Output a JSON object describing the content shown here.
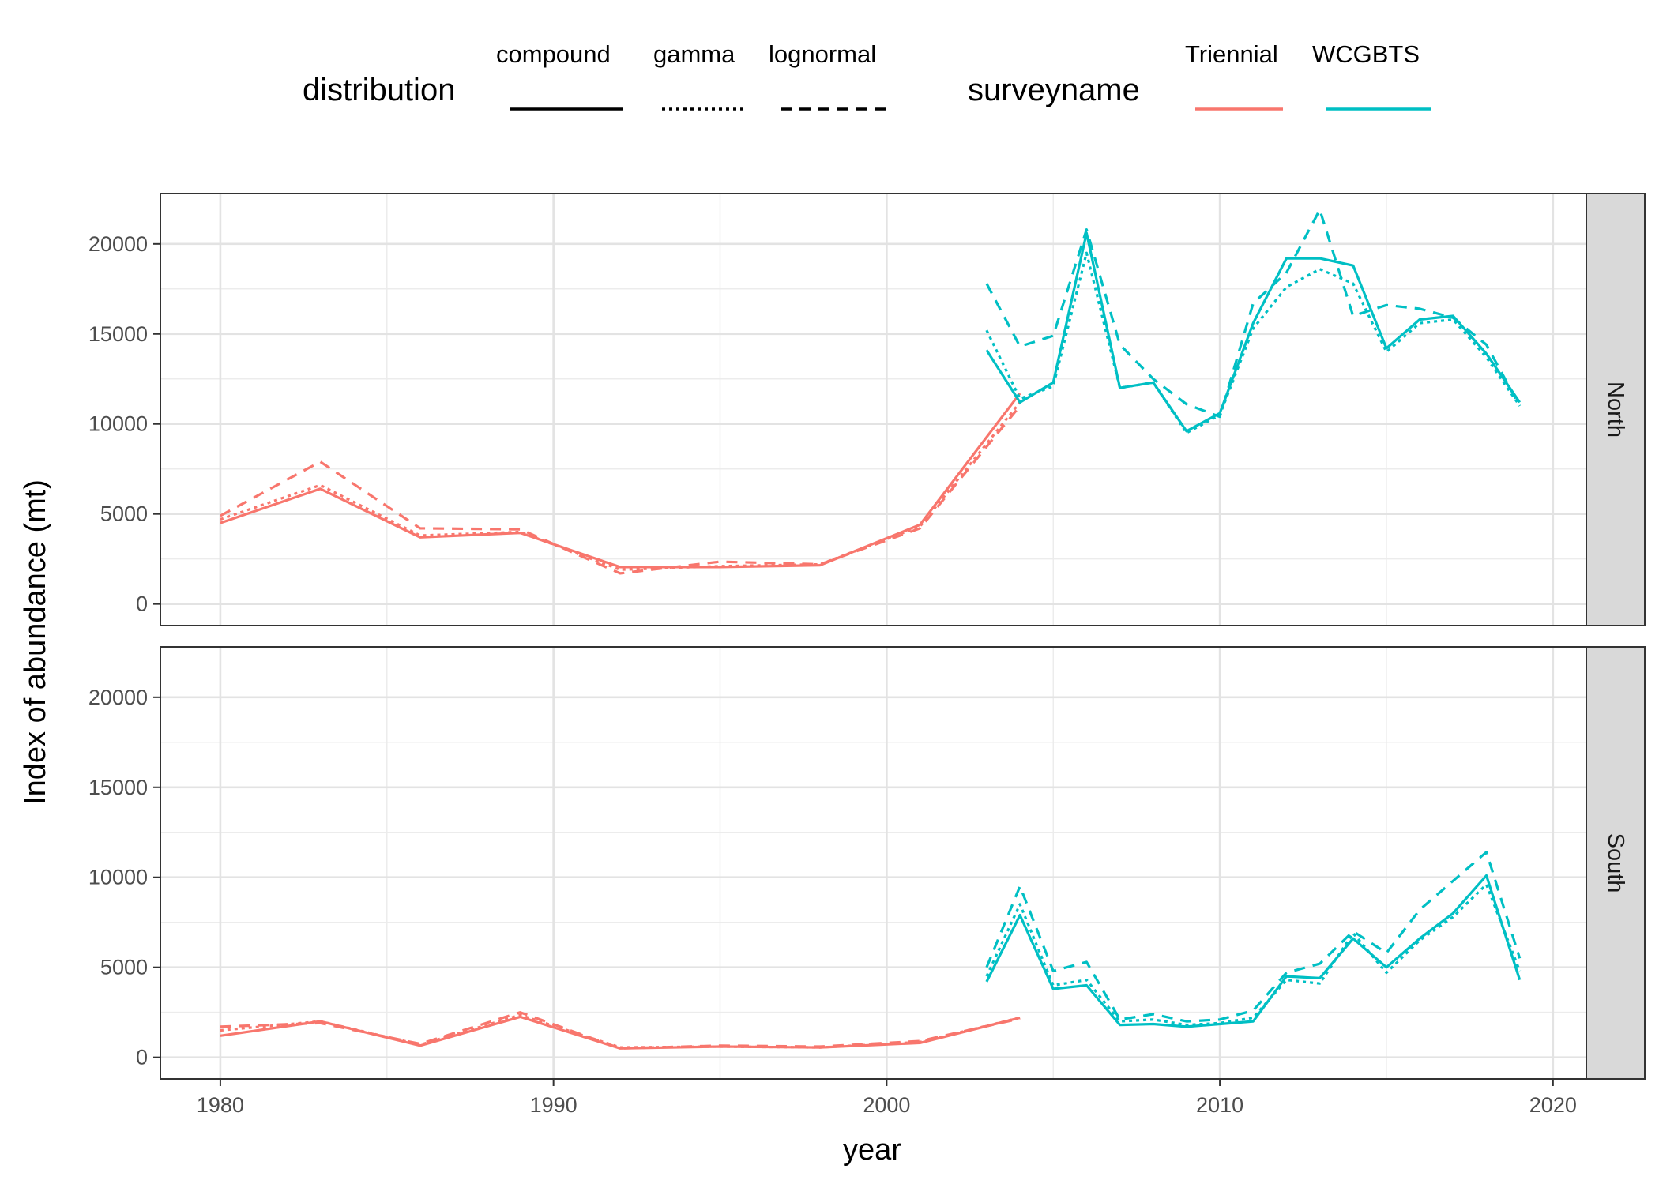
{
  "chart_data": {
    "type": "line",
    "xlabel": "year",
    "ylabel": "Index of abundance (mt)",
    "xlim": [
      1978.2,
      2021.0
    ],
    "x_ticks": [
      1980,
      1990,
      2000,
      2010,
      2020
    ],
    "ylim": [
      -1200,
      22800
    ],
    "y_ticks": [
      0,
      5000,
      10000,
      15000,
      20000
    ],
    "grid": true,
    "legend_position": "top",
    "legend": {
      "distribution": {
        "title": "distribution",
        "entries": [
          {
            "label": "compound",
            "dash": "solid"
          },
          {
            "label": "gamma",
            "dash": "dotted"
          },
          {
            "label": "lognormal",
            "dash": "dashed"
          }
        ]
      },
      "surveyname": {
        "title": "surveyname",
        "entries": [
          {
            "label": "Triennial",
            "color": "#F8766D"
          },
          {
            "label": "WCGBTS",
            "color": "#00BFC4"
          }
        ]
      }
    },
    "panels": [
      {
        "label": "North",
        "series": [
          {
            "surveyname": "Triennial",
            "distribution": "compound",
            "x": [
              1980,
              1983,
              1986,
              1989,
              1992,
              1995,
              1998,
              2001,
              2004
            ],
            "y": [
              4500,
              6400,
              3700,
              3950,
              2050,
              2050,
              2150,
              4400,
              11700
            ]
          },
          {
            "surveyname": "Triennial",
            "distribution": "gamma",
            "x": [
              1980,
              1983,
              1986,
              1989,
              1992,
              1995,
              1998,
              2001,
              2004
            ],
            "y": [
              4700,
              6600,
              3800,
              4000,
              1900,
              2100,
              2200,
              4300,
              11200
            ]
          },
          {
            "surveyname": "Triennial",
            "distribution": "lognormal",
            "x": [
              1980,
              1983,
              1986,
              1989,
              1992,
              1995,
              1998,
              2001,
              2004
            ],
            "y": [
              4900,
              7900,
              4200,
              4150,
              1700,
              2350,
              2200,
              4200,
              11000
            ]
          },
          {
            "surveyname": "WCGBTS",
            "distribution": "compound",
            "x": [
              2003,
              2004,
              2005,
              2006,
              2007,
              2008,
              2009,
              2010,
              2011,
              2012,
              2013,
              2014,
              2015,
              2016,
              2017,
              2018,
              2019
            ],
            "y": [
              14100,
              11200,
              12300,
              20600,
              12000,
              12300,
              9600,
              10600,
              15600,
              19200,
              19200,
              18800,
              14200,
              15800,
              16000,
              13900,
              11200
            ]
          },
          {
            "surveyname": "WCGBTS",
            "distribution": "gamma",
            "x": [
              2003,
              2004,
              2005,
              2006,
              2007,
              2008,
              2009,
              2010,
              2011,
              2012,
              2013,
              2014,
              2015,
              2016,
              2017,
              2018,
              2019
            ],
            "y": [
              15200,
              11400,
              12100,
              19500,
              12000,
              12300,
              9500,
              10500,
              15300,
              17600,
              18600,
              17800,
              14000,
              15600,
              15800,
              13700,
              11000
            ]
          },
          {
            "surveyname": "WCGBTS",
            "distribution": "lognormal",
            "x": [
              2003,
              2004,
              2005,
              2006,
              2007,
              2008,
              2009,
              2010,
              2011,
              2012,
              2013,
              2014,
              2015,
              2016,
              2017,
              2018,
              2019
            ],
            "y": [
              17800,
              14300,
              14900,
              20800,
              14400,
              12500,
              11100,
              10400,
              16700,
              18400,
              21900,
              16000,
              16600,
              16400,
              15900,
              14400,
              11000
            ]
          }
        ]
      },
      {
        "label": "South",
        "series": [
          {
            "surveyname": "Triennial",
            "distribution": "compound",
            "x": [
              1980,
              1983,
              1986,
              1989,
              1992,
              1995,
              1998,
              2001,
              2004
            ],
            "y": [
              1200,
              2000,
              650,
              2250,
              500,
              600,
              550,
              800,
              2200
            ]
          },
          {
            "surveyname": "Triennial",
            "distribution": "gamma",
            "x": [
              1980,
              1983,
              1986,
              1989,
              1992,
              1995,
              1998,
              2001,
              2004
            ],
            "y": [
              1500,
              2000,
              700,
              2350,
              550,
              600,
              550,
              850,
              2200
            ]
          },
          {
            "surveyname": "Triennial",
            "distribution": "lognormal",
            "x": [
              1980,
              1983,
              1986,
              1989,
              1992,
              1995,
              1998,
              2001,
              2004
            ],
            "y": [
              1700,
              1900,
              750,
              2500,
              500,
              650,
              600,
              900,
              2150
            ]
          },
          {
            "surveyname": "WCGBTS",
            "distribution": "compound",
            "x": [
              2003,
              2004,
              2005,
              2006,
              2007,
              2008,
              2009,
              2010,
              2011,
              2012,
              2013,
              2014,
              2015,
              2016,
              2017,
              2018,
              2019
            ],
            "y": [
              4200,
              7900,
              3800,
              4000,
              1800,
              1850,
              1700,
              1850,
              2000,
              4500,
              4400,
              6600,
              5000,
              6600,
              8000,
              10100,
              4300
            ]
          },
          {
            "surveyname": "WCGBTS",
            "distribution": "gamma",
            "x": [
              2003,
              2004,
              2005,
              2006,
              2007,
              2008,
              2009,
              2010,
              2011,
              2012,
              2013,
              2014,
              2015,
              2016,
              2017,
              2018,
              2019
            ],
            "y": [
              4500,
              8500,
              4000,
              4300,
              2000,
              2100,
              1800,
              1900,
              2200,
              4300,
              4100,
              6900,
              4700,
              6500,
              7800,
              9600,
              4800
            ]
          },
          {
            "surveyname": "WCGBTS",
            "distribution": "lognormal",
            "x": [
              2003,
              2004,
              2005,
              2006,
              2007,
              2008,
              2009,
              2010,
              2011,
              2012,
              2013,
              2014,
              2015,
              2016,
              2017,
              2018,
              2019
            ],
            "y": [
              5000,
              9500,
              4800,
              5300,
              2100,
              2400,
              2000,
              2100,
              2600,
              4700,
              5200,
              7000,
              5800,
              8200,
              9800,
              11400,
              5500
            ]
          }
        ]
      }
    ]
  }
}
